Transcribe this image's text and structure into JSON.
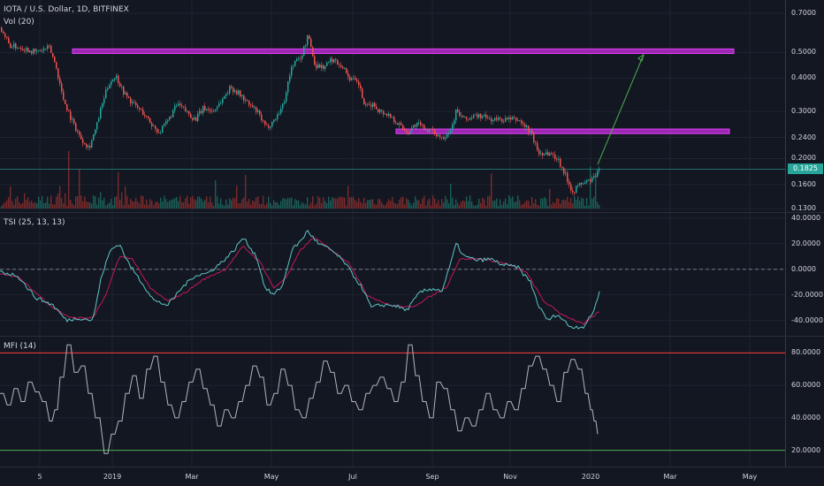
{
  "header": {
    "symbol_line": "IOTA / U.S. Dollar, 1D, BITFINEX",
    "vol_label": "Vol (20)"
  },
  "colors": {
    "up": "#26a69a",
    "down": "#ef5350",
    "zone": "#9c27b0",
    "arrow": "#4caf50",
    "tsi": "#5ec6c6",
    "tsi_signal": "#c2185b",
    "mfi": "#b2b5be",
    "mfi_upper": "#ff3b3b",
    "mfi_lower": "#4caf50"
  },
  "chart_data": [
    {
      "type": "candlestick",
      "pane": "price",
      "scale": "log",
      "ylim": [
        0.13,
        0.75
      ],
      "y_ticks": [
        "0.7000",
        "0.5000",
        "0.4000",
        "0.3000",
        "0.2400",
        "0.2000",
        "0.1600",
        "0.1300"
      ],
      "last_price_label": "0.1825",
      "close_path": [
        [
          0,
          0.62
        ],
        [
          10,
          0.53
        ],
        [
          25,
          0.52
        ],
        [
          40,
          0.5
        ],
        [
          55,
          0.52
        ],
        [
          62,
          0.45
        ],
        [
          70,
          0.34
        ],
        [
          80,
          0.28
        ],
        [
          90,
          0.24
        ],
        [
          100,
          0.22
        ],
        [
          108,
          0.26
        ],
        [
          115,
          0.32
        ],
        [
          122,
          0.38
        ],
        [
          130,
          0.41
        ],
        [
          140,
          0.35
        ],
        [
          150,
          0.32
        ],
        [
          160,
          0.3
        ],
        [
          170,
          0.27
        ],
        [
          180,
          0.25
        ],
        [
          190,
          0.28
        ],
        [
          200,
          0.32
        ],
        [
          210,
          0.3
        ],
        [
          220,
          0.28
        ],
        [
          230,
          0.31
        ],
        [
          240,
          0.3
        ],
        [
          250,
          0.33
        ],
        [
          260,
          0.37
        ],
        [
          270,
          0.35
        ],
        [
          280,
          0.32
        ],
        [
          290,
          0.3
        ],
        [
          300,
          0.26
        ],
        [
          310,
          0.28
        ],
        [
          320,
          0.32
        ],
        [
          330,
          0.45
        ],
        [
          340,
          0.48
        ],
        [
          348,
          0.58
        ],
        [
          355,
          0.45
        ],
        [
          365,
          0.44
        ],
        [
          375,
          0.47
        ],
        [
          385,
          0.45
        ],
        [
          395,
          0.4
        ],
        [
          405,
          0.38
        ],
        [
          412,
          0.31
        ],
        [
          420,
          0.32
        ],
        [
          430,
          0.3
        ],
        [
          440,
          0.29
        ],
        [
          450,
          0.27
        ],
        [
          460,
          0.25
        ],
        [
          470,
          0.27
        ],
        [
          480,
          0.26
        ],
        [
          490,
          0.25
        ],
        [
          500,
          0.24
        ],
        [
          510,
          0.26
        ],
        [
          515,
          0.3
        ],
        [
          525,
          0.28
        ],
        [
          540,
          0.29
        ],
        [
          555,
          0.28
        ],
        [
          570,
          0.28
        ],
        [
          585,
          0.28
        ],
        [
          600,
          0.25
        ],
        [
          608,
          0.21
        ],
        [
          620,
          0.21
        ],
        [
          630,
          0.2
        ],
        [
          640,
          0.17
        ],
        [
          647,
          0.15
        ],
        [
          655,
          0.16
        ],
        [
          665,
          0.165
        ],
        [
          672,
          0.17
        ],
        [
          678,
          0.1825
        ]
      ],
      "zones": [
        {
          "from_x": 82,
          "to_x": 830,
          "low": 0.495,
          "high": 0.515
        },
        {
          "from_x": 448,
          "to_x": 825,
          "low": 0.248,
          "high": 0.258
        }
      ],
      "arrow": {
        "from": [
          676,
          0.19
        ],
        "to": [
          728,
          0.49
        ]
      },
      "h_line": 0.1825
    },
    {
      "type": "bar",
      "pane": "volume",
      "label": "Vol (20)"
    },
    {
      "type": "line",
      "pane": "TSI",
      "label": "TSI (25, 13, 13)",
      "ylim": [
        -52,
        44
      ],
      "y_ticks": [
        "40.0000",
        "20.0000",
        "0.0000",
        "-20.0000",
        "-40.0000"
      ],
      "zero_line": 0,
      "tsi": [
        [
          0,
          -2
        ],
        [
          20,
          -5
        ],
        [
          40,
          -22
        ],
        [
          60,
          -28
        ],
        [
          75,
          -40
        ],
        [
          90,
          -38
        ],
        [
          105,
          -40
        ],
        [
          115,
          -5
        ],
        [
          125,
          15
        ],
        [
          135,
          20
        ],
        [
          145,
          5
        ],
        [
          160,
          -10
        ],
        [
          175,
          -25
        ],
        [
          190,
          -28
        ],
        [
          205,
          -15
        ],
        [
          220,
          -5
        ],
        [
          235,
          -3
        ],
        [
          250,
          5
        ],
        [
          265,
          15
        ],
        [
          275,
          25
        ],
        [
          290,
          10
        ],
        [
          300,
          -15
        ],
        [
          310,
          -20
        ],
        [
          320,
          -12
        ],
        [
          330,
          15
        ],
        [
          340,
          22
        ],
        [
          348,
          30
        ],
        [
          360,
          20
        ],
        [
          375,
          15
        ],
        [
          390,
          5
        ],
        [
          400,
          -5
        ],
        [
          410,
          -15
        ],
        [
          420,
          -30
        ],
        [
          430,
          -28
        ],
        [
          445,
          -28
        ],
        [
          460,
          -32
        ],
        [
          475,
          -18
        ],
        [
          490,
          -15
        ],
        [
          500,
          -17
        ],
        [
          510,
          5
        ],
        [
          516,
          20
        ],
        [
          525,
          10
        ],
        [
          540,
          7
        ],
        [
          555,
          8
        ],
        [
          570,
          3
        ],
        [
          585,
          2
        ],
        [
          600,
          -10
        ],
        [
          610,
          -30
        ],
        [
          620,
          -40
        ],
        [
          630,
          -35
        ],
        [
          645,
          -45
        ],
        [
          660,
          -45
        ],
        [
          670,
          -35
        ],
        [
          678,
          -18
        ]
      ],
      "signal": [
        [
          0,
          -3
        ],
        [
          20,
          -6
        ],
        [
          40,
          -18
        ],
        [
          60,
          -30
        ],
        [
          80,
          -38
        ],
        [
          105,
          -38
        ],
        [
          120,
          -20
        ],
        [
          135,
          10
        ],
        [
          150,
          8
        ],
        [
          170,
          -15
        ],
        [
          190,
          -25
        ],
        [
          210,
          -18
        ],
        [
          230,
          -8
        ],
        [
          255,
          0
        ],
        [
          275,
          18
        ],
        [
          295,
          5
        ],
        [
          310,
          -15
        ],
        [
          325,
          -5
        ],
        [
          340,
          15
        ],
        [
          355,
          25
        ],
        [
          375,
          15
        ],
        [
          395,
          5
        ],
        [
          415,
          -20
        ],
        [
          440,
          -28
        ],
        [
          465,
          -30
        ],
        [
          490,
          -20
        ],
        [
          505,
          -14
        ],
        [
          520,
          8
        ],
        [
          545,
          8
        ],
        [
          570,
          5
        ],
        [
          595,
          -2
        ],
        [
          615,
          -25
        ],
        [
          635,
          -35
        ],
        [
          660,
          -43
        ],
        [
          678,
          -33
        ]
      ]
    },
    {
      "type": "line",
      "pane": "MFI",
      "label": "MFI (14)",
      "ylim": [
        10,
        90
      ],
      "y_ticks": [
        "80.0000",
        "60.0000",
        "40.0000",
        "20.0000"
      ],
      "bands": {
        "upper": 80,
        "lower": 20
      },
      "values": [
        [
          0,
          55
        ],
        [
          8,
          48
        ],
        [
          16,
          58
        ],
        [
          24,
          50
        ],
        [
          32,
          62
        ],
        [
          40,
          56
        ],
        [
          48,
          50
        ],
        [
          56,
          38
        ],
        [
          62,
          45
        ],
        [
          68,
          65
        ],
        [
          76,
          85
        ],
        [
          84,
          68
        ],
        [
          92,
          72
        ],
        [
          100,
          55
        ],
        [
          108,
          40
        ],
        [
          118,
          18
        ],
        [
          126,
          30
        ],
        [
          134,
          38
        ],
        [
          142,
          55
        ],
        [
          150,
          66
        ],
        [
          158,
          52
        ],
        [
          166,
          70
        ],
        [
          174,
          78
        ],
        [
          182,
          62
        ],
        [
          190,
          48
        ],
        [
          198,
          40
        ],
        [
          206,
          50
        ],
        [
          214,
          62
        ],
        [
          222,
          70
        ],
        [
          230,
          58
        ],
        [
          238,
          48
        ],
        [
          246,
          35
        ],
        [
          254,
          45
        ],
        [
          262,
          40
        ],
        [
          270,
          50
        ],
        [
          278,
          60
        ],
        [
          286,
          72
        ],
        [
          294,
          65
        ],
        [
          302,
          48
        ],
        [
          310,
          55
        ],
        [
          318,
          70
        ],
        [
          326,
          60
        ],
        [
          334,
          45
        ],
        [
          342,
          40
        ],
        [
          350,
          52
        ],
        [
          358,
          62
        ],
        [
          366,
          75
        ],
        [
          374,
          68
        ],
        [
          382,
          55
        ],
        [
          390,
          60
        ],
        [
          398,
          50
        ],
        [
          406,
          45
        ],
        [
          414,
          55
        ],
        [
          422,
          60
        ],
        [
          430,
          65
        ],
        [
          438,
          58
        ],
        [
          446,
          50
        ],
        [
          454,
          62
        ],
        [
          462,
          85
        ],
        [
          470,
          66
        ],
        [
          478,
          50
        ],
        [
          486,
          40
        ],
        [
          494,
          62
        ],
        [
          502,
          58
        ],
        [
          510,
          45
        ],
        [
          518,
          32
        ],
        [
          526,
          40
        ],
        [
          534,
          35
        ],
        [
          542,
          45
        ],
        [
          550,
          55
        ],
        [
          558,
          45
        ],
        [
          566,
          40
        ],
        [
          574,
          50
        ],
        [
          582,
          45
        ],
        [
          590,
          58
        ],
        [
          598,
          72
        ],
        [
          606,
          78
        ],
        [
          614,
          70
        ],
        [
          622,
          60
        ],
        [
          630,
          50
        ],
        [
          638,
          68
        ],
        [
          646,
          76
        ],
        [
          654,
          70
        ],
        [
          662,
          55
        ],
        [
          668,
          45
        ],
        [
          672,
          38
        ],
        [
          676,
          30
        ]
      ]
    }
  ],
  "x_axis": {
    "labels": [
      {
        "text": "5",
        "x": 45
      },
      {
        "text": "2019",
        "x": 127
      },
      {
        "text": "Mar",
        "x": 217
      },
      {
        "text": "May",
        "x": 307
      },
      {
        "text": "Jul",
        "x": 399
      },
      {
        "text": "Sep",
        "x": 489
      },
      {
        "text": "Nov",
        "x": 577
      },
      {
        "text": "2020",
        "x": 668
      },
      {
        "text": "Mar",
        "x": 758
      },
      {
        "text": "May",
        "x": 848
      }
    ]
  }
}
